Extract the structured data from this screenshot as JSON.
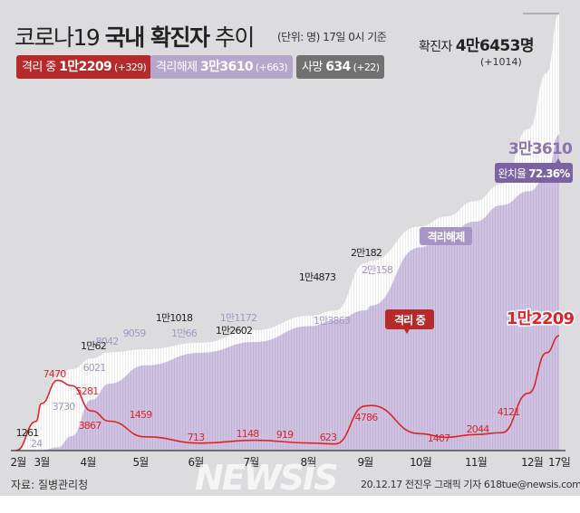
{
  "header": {
    "title_prefix": "코로나19 ",
    "title_bold": "국내 확진자",
    "title_suffix": " 추이",
    "unit_note": "(단위: 명) 17일 0시 기준",
    "total_label": "확진자 ",
    "total_value": "4만6453명",
    "total_delta": "(+1014)"
  },
  "badges": [
    {
      "label": "격리 중 ",
      "value": "1만2209",
      "delta": " (+329)",
      "color": "#b72a2b"
    },
    {
      "label": "격리해제 ",
      "value": "3만3610",
      "delta": " (+663)",
      "color": "#b5a7cc"
    },
    {
      "label": "사망 ",
      "value": "634",
      "delta": " (+22)",
      "color": "#717171"
    }
  ],
  "footer": {
    "source": "자료: 질병관리청",
    "credit": "20.12.17 전진우 그래픽 기자 618tue@newsis.com",
    "watermark": "NEWSIS"
  },
  "chart_data": {
    "type": "area",
    "title": "코로나19 국내 확진자 추이",
    "x_ticks": [
      "2월",
      "3월",
      "4월",
      "5월",
      "6월",
      "7월",
      "8월",
      "9월",
      "10월",
      "11월",
      "12월",
      "17일"
    ],
    "colors": {
      "confirmed": "#ffffff",
      "released": "#cfc2e0",
      "isolated": "#d8262b",
      "released_label": "#8a73b0"
    },
    "series": [
      {
        "name": "확진자",
        "key": "confirmed"
      },
      {
        "name": "격리해제",
        "key": "released"
      },
      {
        "name": "격리 중",
        "key": "isolated"
      }
    ],
    "x": [
      "2020-02-18",
      "2020-02-29",
      "2020-03-03",
      "2020-03-12",
      "2020-03-20",
      "2020-03-31",
      "2020-04-10",
      "2020-04-30",
      "2020-05-31",
      "2020-06-30",
      "2020-07-31",
      "2020-08-14",
      "2020-08-31",
      "2020-09-03",
      "2020-09-30",
      "2020-10-15",
      "2020-10-31",
      "2020-11-15",
      "2020-11-30",
      "2020-12-10",
      "2020-12-17"
    ],
    "confirmed": [
      31,
      3150,
      5186,
      7869,
      8652,
      9786,
      10450,
      10765,
      11468,
      12800,
      14336,
      14873,
      19947,
      20182,
      23812,
      24889,
      26511,
      28338,
      34201,
      40098,
      46453
    ],
    "released": [
      12,
      28,
      34,
      333,
      1540,
      5408,
      7117,
      9059,
      10405,
      11537,
      13233,
      13863,
      14902,
      15400,
      21590,
      23054,
      24327,
      26084,
      27571,
      29000,
      33610
    ],
    "isolated": [
      19,
      3100,
      5000,
      7470,
      6900,
      4216,
      3125,
      1459,
      790,
      1100,
      800,
      700,
      4745,
      4786,
      1800,
      1407,
      1700,
      1900,
      6100,
      10400,
      12209
    ],
    "annotations": {
      "confirmed": [
        "1261",
        "1만62",
        "1만1018",
        "1만2602",
        "1만4873",
        "2만182",
        "4만6453"
      ],
      "released": [
        "24",
        "3730",
        "6021",
        "8042",
        "9059",
        "1만66",
        "1만1172",
        "1만3863",
        "2만158",
        "3만3610"
      ],
      "isolated": [
        "7470",
        "5281",
        "3867",
        "1459",
        "713",
        "1148",
        "919",
        "623",
        "4786",
        "1407",
        "2044",
        "4121",
        "1만2209"
      ]
    },
    "callouts": {
      "released_tag": "격리해제",
      "isolated_tag": "격리 중",
      "recovery_rate_label": "완치율 ",
      "recovery_rate": "72.36%"
    },
    "ylim": [
      0,
      46453
    ]
  }
}
